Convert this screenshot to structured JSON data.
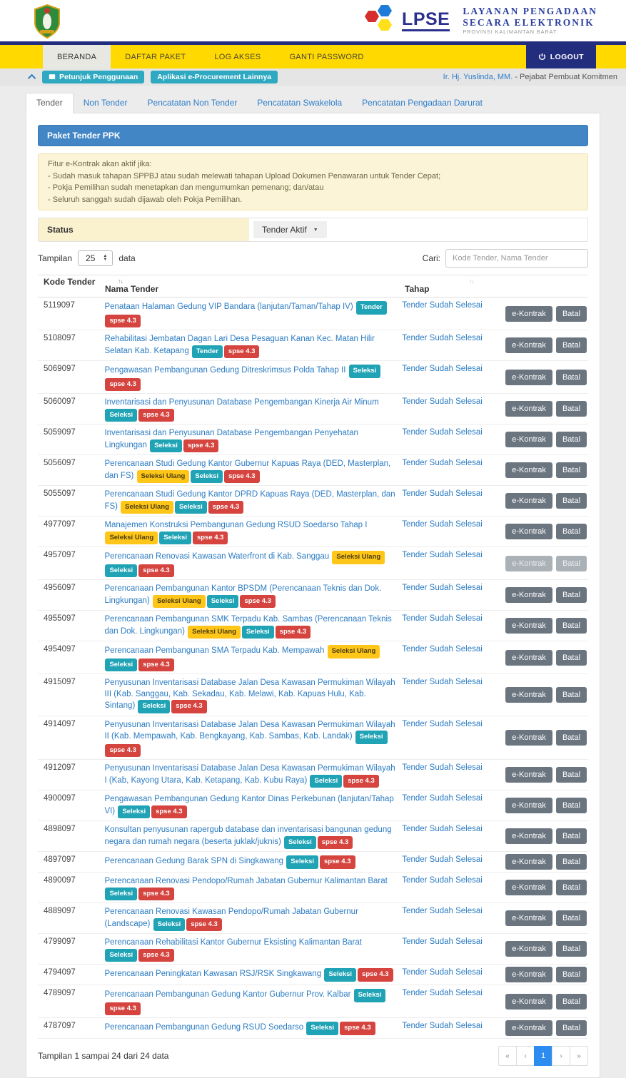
{
  "brand": {
    "lpse_acronym": "LPSE",
    "title_line1": "LAYANAN PENGADAAN",
    "title_line2": "SECARA ELEKTRONIK",
    "subtitle": "PROVINSI KALIMANTAN BARAT"
  },
  "nav": {
    "items": [
      {
        "label": "BERANDA",
        "active": true
      },
      {
        "label": "DAFTAR PAKET",
        "active": false
      },
      {
        "label": "LOG AKSES",
        "active": false
      },
      {
        "label": "GANTI PASSWORD",
        "active": false
      }
    ],
    "logout_label": "LOGOUT"
  },
  "toolbar": {
    "help_badge": "Petunjuk Penggunaan",
    "apps_badge": "Aplikasi e-Procurement Lainnya",
    "user_name": "Ir. Hj. Yuslinda, MM.",
    "user_role_suffix": " - Pejabat Pembuat Komitmen"
  },
  "tabs": [
    {
      "label": "Tender",
      "active": true
    },
    {
      "label": "Non Tender",
      "active": false
    },
    {
      "label": "Pencatatan Non Tender",
      "active": false
    },
    {
      "label": "Pencatatan Swakelola",
      "active": false
    },
    {
      "label": "Pencatatan Pengadaan Darurat",
      "active": false
    }
  ],
  "panel": {
    "title": "Paket Tender PPK"
  },
  "alert": {
    "lines": [
      "Fitur e-Kontrak akan aktif jika:",
      "- Sudah masuk tahapan SPPBJ atau sudah melewati tahapan Upload Dokumen Penawaran untuk Tender Cepat;",
      "- Pokja Pemilihan sudah menetapkan dan mengumumkan pemenang; dan/atau",
      "- Seluruh sanggah sudah dijawab oleh Pokja Pemilihan."
    ]
  },
  "filter": {
    "status_label": "Status",
    "status_value": "Tender Aktif"
  },
  "controls": {
    "tampilan_prefix": "Tampilan",
    "page_size": "25",
    "tampilan_suffix": "data",
    "cari_label": "Cari:",
    "cari_placeholder": "Kode Tender, Nama Tender"
  },
  "table": {
    "headers": {
      "kode": "Kode Tender",
      "nama": "Nama Tender",
      "tahap": "Tahap"
    },
    "action_labels": [
      "e-Kontrak",
      "Batal"
    ],
    "badge_styles": {
      "Tender": "teal",
      "Seleksi": "teal",
      "Seleksi Ulang": "yellow",
      "spse 4.3": "red"
    },
    "rows": [
      {
        "kode": "5119097",
        "nama": "Penataan Halaman Gedung VIP Bandara (lanjutan/Taman/Tahap IV)",
        "badges": [
          "Tender",
          "spse 4.3"
        ],
        "tahap": "Tender Sudah Selesai",
        "disabled": false
      },
      {
        "kode": "5108097",
        "nama": "Rehabilitasi Jembatan Dagan Lari Desa Pesaguan Kanan Kec. Matan Hilir Selatan Kab. Ketapang",
        "badges": [
          "Tender",
          "spse 4.3"
        ],
        "tahap": "Tender Sudah Selesai",
        "disabled": false
      },
      {
        "kode": "5069097",
        "nama": "Pengawasan Pembangunan Gedung Ditreskrimsus Polda Tahap II",
        "badges": [
          "Seleksi",
          "spse 4.3"
        ],
        "tahap": "Tender Sudah Selesai",
        "disabled": false
      },
      {
        "kode": "5060097",
        "nama": "Inventarisasi dan Penyusunan Database Pengembangan Kinerja Air Minum",
        "badges": [
          "Seleksi",
          "spse 4.3"
        ],
        "tahap": "Tender Sudah Selesai",
        "disabled": false
      },
      {
        "kode": "5059097",
        "nama": "Inventarisasi dan Penyusunan Database Pengembangan Penyehatan Lingkungan",
        "badges": [
          "Seleksi",
          "spse 4.3"
        ],
        "tahap": "Tender Sudah Selesai",
        "disabled": false
      },
      {
        "kode": "5056097",
        "nama": "Perencanaan Studi Gedung Kantor Gubernur Kapuas Raya (DED, Masterplan, dan FS)",
        "badges": [
          "Seleksi Ulang",
          "Seleksi",
          "spse 4.3"
        ],
        "tahap": "Tender Sudah Selesai",
        "disabled": false
      },
      {
        "kode": "5055097",
        "nama": "Perencanaan Studi Gedung Kantor DPRD Kapuas Raya (DED, Masterplan, dan FS)",
        "badges": [
          "Seleksi Ulang",
          "Seleksi",
          "spse 4.3"
        ],
        "tahap": "Tender Sudah Selesai",
        "disabled": false
      },
      {
        "kode": "4977097",
        "nama": "Manajemen Konstruksi Pembangunan Gedung RSUD Soedarso Tahap I",
        "badges": [
          "Seleksi Ulang",
          "Seleksi",
          "spse 4.3"
        ],
        "tahap": "Tender Sudah Selesai",
        "disabled": false
      },
      {
        "kode": "4957097",
        "nama": "Perencanaan Renovasi Kawasan Waterfront di Kab. Sanggau",
        "badges": [
          "Seleksi Ulang",
          "Seleksi",
          "spse 4.3"
        ],
        "tahap": "Tender Sudah Selesai",
        "disabled": true
      },
      {
        "kode": "4956097",
        "nama": "Perencanaan Pembangunan Kantor BPSDM (Perencanaan Teknis dan Dok. Lingkungan)",
        "badges": [
          "Seleksi Ulang",
          "Seleksi",
          "spse 4.3"
        ],
        "tahap": "Tender Sudah Selesai",
        "disabled": false
      },
      {
        "kode": "4955097",
        "nama": "Perencanaan Pembangunan SMK Terpadu Kab. Sambas (Perencanaan Teknis dan Dok. Lingkungan)",
        "badges": [
          "Seleksi Ulang",
          "Seleksi",
          "spse 4.3"
        ],
        "tahap": "Tender Sudah Selesai",
        "disabled": false
      },
      {
        "kode": "4954097",
        "nama": "Perencanaan Pembangunan SMA Terpadu Kab. Mempawah",
        "badges": [
          "Seleksi Ulang",
          "Seleksi",
          "spse 4.3"
        ],
        "tahap": "Tender Sudah Selesai",
        "disabled": false
      },
      {
        "kode": "4915097",
        "nama": "Penyusunan Inventarisasi Database Jalan Desa Kawasan Permukiman Wilayah III (Kab. Sanggau, Kab. Sekadau, Kab. Melawi, Kab. Kapuas Hulu, Kab. Sintang)",
        "badges": [
          "Seleksi",
          "spse 4.3"
        ],
        "tahap": "Tender Sudah Selesai",
        "disabled": false
      },
      {
        "kode": "4914097",
        "nama": "Penyusunan Inventarisasi Database Jalan Desa Kawasan Permukiman Wilayah II (Kab. Mempawah, Kab. Bengkayang, Kab. Sambas, Kab. Landak)",
        "badges": [
          "Seleksi",
          "spse 4.3"
        ],
        "tahap": "Tender Sudah Selesai",
        "disabled": false
      },
      {
        "kode": "4912097",
        "nama": "Penyusunan Inventarisasi Database Jalan Desa Kawasan Permukiman Wilayah I (Kab, Kayong Utara, Kab. Ketapang, Kab. Kubu Raya)",
        "badges": [
          "Seleksi",
          "spse 4.3"
        ],
        "tahap": "Tender Sudah Selesai",
        "disabled": false
      },
      {
        "kode": "4900097",
        "nama": "Pengawasan Pembangunan Gedung Kantor Dinas Perkebunan (lanjutan/Tahap VI)",
        "badges": [
          "Seleksi",
          "spse 4.3"
        ],
        "tahap": "Tender Sudah Selesai",
        "disabled": false
      },
      {
        "kode": "4898097",
        "nama": "Konsultan penyusunan rapergub database dan inventarisasi bangunan gedung negara dan rumah negara (beserta juklak/juknis)",
        "badges": [
          "Seleksi",
          "spse 4.3"
        ],
        "tahap": "Tender Sudah Selesai",
        "disabled": false
      },
      {
        "kode": "4897097",
        "nama": "Perencanaan Gedung Barak SPN di Singkawang",
        "badges": [
          "Seleksi",
          "spse 4.3"
        ],
        "tahap": "Tender Sudah Selesai",
        "disabled": false
      },
      {
        "kode": "4890097",
        "nama": "Perencanaan Renovasi Pendopo/Rumah Jabatan Gubernur Kalimantan Barat",
        "badges": [
          "Seleksi",
          "spse 4.3"
        ],
        "tahap": "Tender Sudah Selesai",
        "disabled": false
      },
      {
        "kode": "4889097",
        "nama": "Perencanaan Renovasi Kawasan Pendopo/Rumah Jabatan Gubernur (Landscape)",
        "badges": [
          "Seleksi",
          "spse 4.3"
        ],
        "tahap": "Tender Sudah Selesai",
        "disabled": false
      },
      {
        "kode": "4799097",
        "nama": "Perencanaan Rehabilitasi Kantor Gubernur Eksisting Kalimantan Barat",
        "badges": [
          "Seleksi",
          "spse 4.3"
        ],
        "tahap": "Tender Sudah Selesai",
        "disabled": false
      },
      {
        "kode": "4794097",
        "nama": "Perencanaan Peningkatan Kawasan RSJ/RSK Singkawang",
        "badges": [
          "Seleksi",
          "spse 4.3"
        ],
        "tahap": "Tender Sudah Selesai",
        "disabled": false
      },
      {
        "kode": "4789097",
        "nama": "Perencanaan Pembangunan Gedung Kantor Gubernur Prov. Kalbar",
        "badges": [
          "Seleksi",
          "spse 4.3"
        ],
        "tahap": "Tender Sudah Selesai",
        "disabled": false
      },
      {
        "kode": "4787097",
        "nama": "Perencanaan Pembangunan Gedung RSUD Soedarso",
        "badges": [
          "Seleksi",
          "spse 4.3"
        ],
        "tahap": "Tender Sudah Selesai",
        "disabled": false
      }
    ]
  },
  "footer": {
    "summary": "Tampilan 1 sampai 24 dari 24 data"
  },
  "pagination": {
    "buttons": [
      {
        "label": "«",
        "active": false
      },
      {
        "label": "‹",
        "active": false
      },
      {
        "label": "1",
        "active": true
      },
      {
        "label": "›",
        "active": false
      },
      {
        "label": "»",
        "active": false
      }
    ]
  },
  "colors": {
    "nav_yellow": "#FFD900",
    "navy": "#232D7E",
    "panel_blue": "#4286C6",
    "link_blue": "#2C7CC3",
    "teal_badge": "#1FA3B5",
    "red_badge": "#D5443F",
    "yellow_badge": "#FFC61A",
    "teal_pill": "#2FA9C1",
    "button_gray": "#6B7580",
    "pagination_active": "#2D8CF0",
    "alert_bg": "#FCF4D7",
    "status_label_bg": "#FAF1CE"
  }
}
